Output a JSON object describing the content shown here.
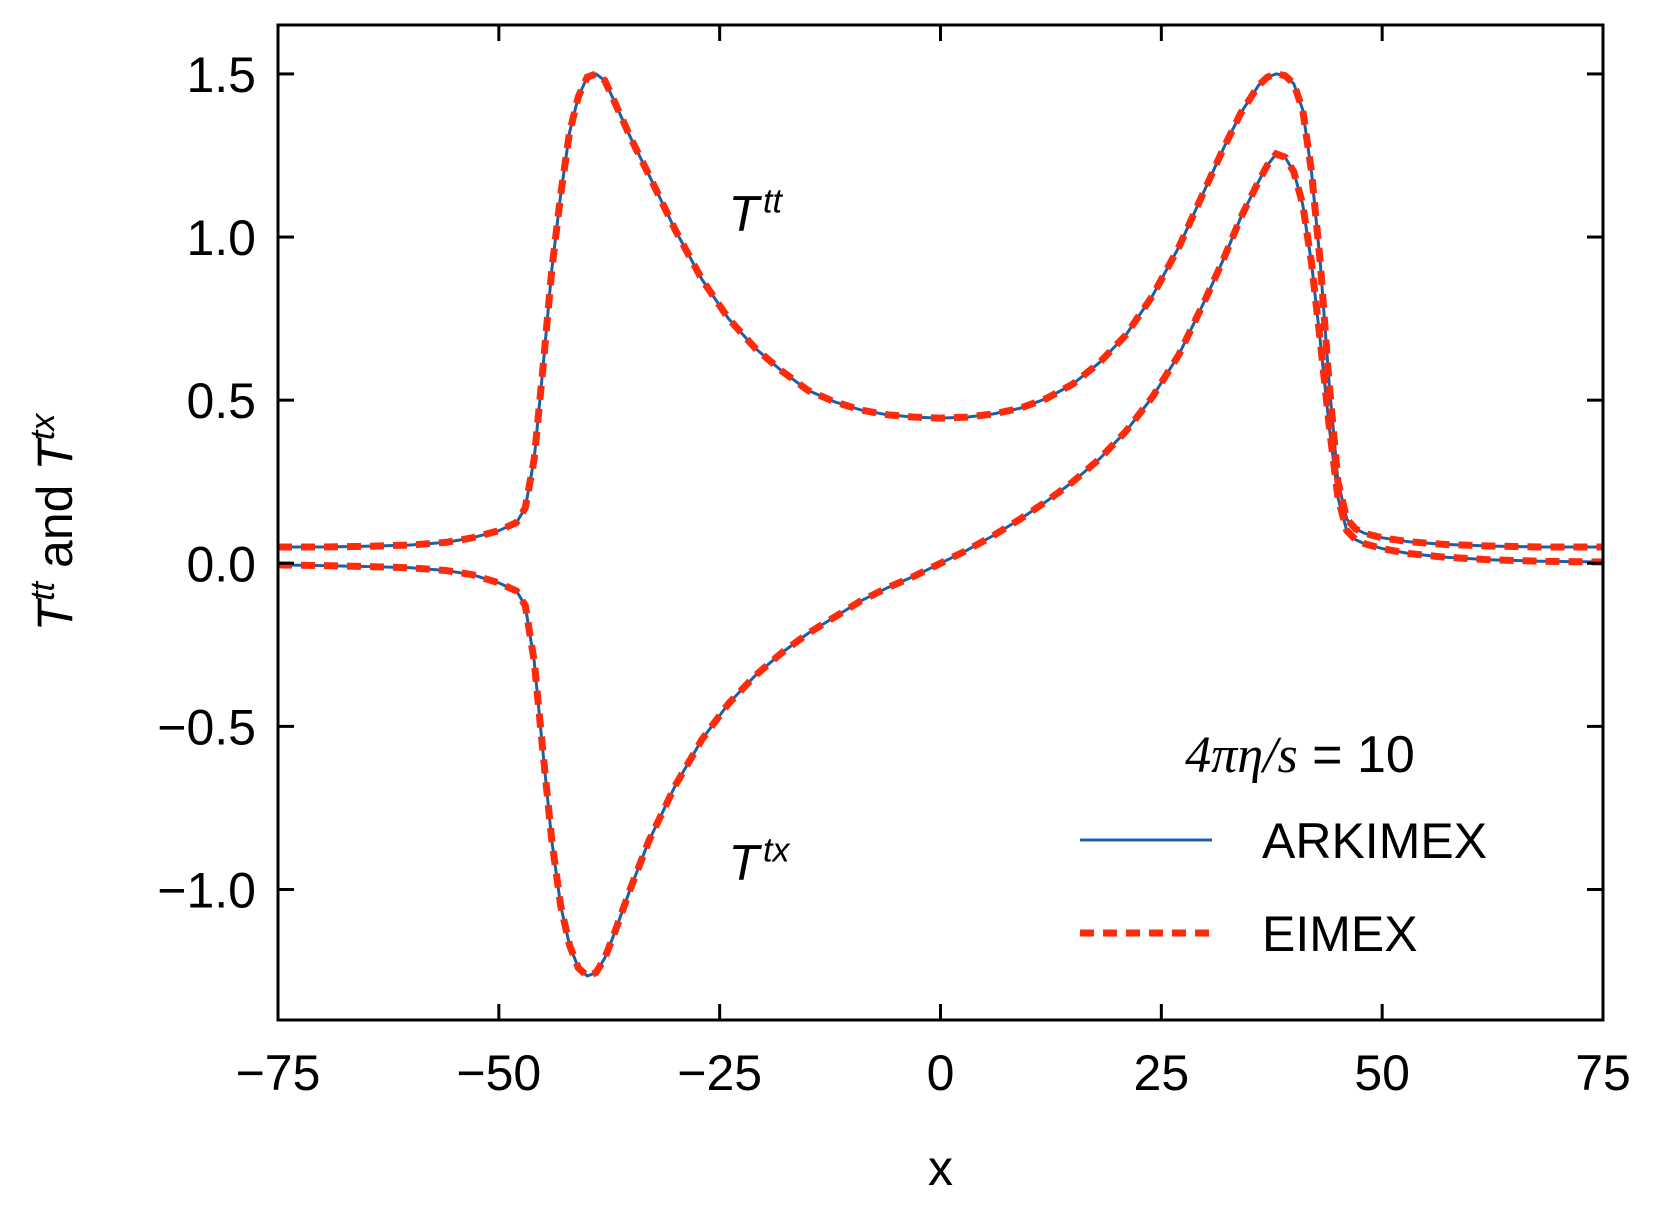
{
  "chart_data": {
    "type": "line",
    "xlabel": "x",
    "ylabel_parts": [
      "T",
      "tt",
      " and ",
      "T",
      "tx"
    ],
    "xlim": [
      -75,
      75
    ],
    "ylim": [
      -1.4,
      1.65
    ],
    "xticks": [
      -75,
      -50,
      -25,
      0,
      25,
      50,
      75
    ],
    "xtick_labels": [
      "−75",
      "−50",
      "−25",
      "0",
      "25",
      "50",
      "75"
    ],
    "yticks": [
      -1.0,
      -0.5,
      0.0,
      0.5,
      1.0,
      1.5
    ],
    "ytick_labels": [
      "−1.0",
      "−0.5",
      "0.0",
      "0.5",
      "1.0",
      "1.5"
    ],
    "grid": false,
    "legend": {
      "placement": "lower-right",
      "title_parts": [
        "4πη/",
        "s",
        " = 10"
      ],
      "entries": [
        {
          "label": "ARKIMEX",
          "color": "#1f5fa8",
          "style": "solid"
        },
        {
          "label": "EIMEX",
          "color": "#ff2a0a",
          "style": "dashed"
        }
      ]
    },
    "annotations": [
      {
        "base": "T",
        "sup": "tt",
        "x": -24,
        "y": 1.02
      },
      {
        "base": "T",
        "sup": "tx",
        "x": -24,
        "y": -0.97
      }
    ],
    "curves": [
      {
        "name": "T^tt",
        "x": [
          -75,
          -70,
          -65,
          -60,
          -56,
          -53,
          -50,
          -48,
          -47,
          -46,
          -45,
          -44,
          -43,
          -42,
          -41,
          -40,
          -39,
          -38,
          -37,
          -35,
          -33,
          -30,
          -27,
          -24,
          -21,
          -18,
          -15,
          -12,
          -9,
          -6,
          -3,
          0,
          3,
          6,
          9,
          12,
          15,
          18,
          21,
          24,
          27,
          30,
          32,
          34,
          36,
          37,
          38,
          39,
          40,
          41,
          42,
          43,
          44,
          45,
          46,
          47,
          48,
          50,
          53,
          57,
          62,
          68,
          75
        ],
        "y": [
          0.05,
          0.05,
          0.052,
          0.056,
          0.064,
          0.078,
          0.1,
          0.125,
          0.17,
          0.32,
          0.6,
          0.9,
          1.13,
          1.32,
          1.43,
          1.49,
          1.5,
          1.48,
          1.42,
          1.3,
          1.19,
          1.02,
          0.87,
          0.75,
          0.66,
          0.59,
          0.53,
          0.495,
          0.47,
          0.455,
          0.448,
          0.445,
          0.448,
          0.458,
          0.475,
          0.505,
          0.55,
          0.615,
          0.7,
          0.82,
          0.97,
          1.15,
          1.27,
          1.38,
          1.465,
          1.49,
          1.5,
          1.495,
          1.47,
          1.39,
          1.2,
          0.92,
          0.55,
          0.25,
          0.135,
          0.105,
          0.092,
          0.078,
          0.066,
          0.058,
          0.053,
          0.05,
          0.05
        ]
      },
      {
        "name": "T^tx",
        "x": [
          -75,
          -70,
          -65,
          -60,
          -56,
          -53,
          -50,
          -48,
          -47,
          -46,
          -45,
          -44,
          -43,
          -42,
          -41,
          -40,
          -39,
          -38,
          -37,
          -35,
          -33,
          -30,
          -27,
          -24,
          -21,
          -18,
          -15,
          -12,
          -9,
          -6,
          -3,
          0,
          3,
          6,
          9,
          12,
          15,
          18,
          21,
          24,
          27,
          30,
          32,
          34,
          36,
          37,
          38,
          39,
          40,
          41,
          42,
          43,
          44,
          45,
          46,
          47,
          48,
          50,
          53,
          57,
          62,
          68,
          75
        ],
        "y": [
          -0.005,
          -0.007,
          -0.01,
          -0.014,
          -0.022,
          -0.035,
          -0.06,
          -0.085,
          -0.13,
          -0.3,
          -0.58,
          -0.85,
          -1.05,
          -1.17,
          -1.24,
          -1.265,
          -1.255,
          -1.21,
          -1.14,
          -0.99,
          -0.85,
          -0.68,
          -0.54,
          -0.43,
          -0.345,
          -0.275,
          -0.215,
          -0.165,
          -0.115,
          -0.075,
          -0.04,
          0.0,
          0.04,
          0.085,
          0.135,
          0.19,
          0.25,
          0.32,
          0.405,
          0.51,
          0.64,
          0.81,
          0.93,
          1.06,
          1.17,
          1.22,
          1.255,
          1.245,
          1.2,
          1.1,
          0.92,
          0.68,
          0.42,
          0.2,
          0.1,
          0.072,
          0.06,
          0.045,
          0.03,
          0.019,
          0.011,
          0.006,
          0.004
        ]
      }
    ]
  }
}
